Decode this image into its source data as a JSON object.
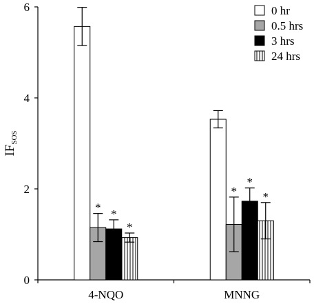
{
  "chart_data": {
    "type": "bar",
    "categories": [
      "4-NQO",
      "MNNG"
    ],
    "series": [
      {
        "name": "0 hr",
        "values": [
          5.57,
          3.53
        ],
        "errors": [
          0.42,
          0.19
        ],
        "significant": [
          false,
          false
        ],
        "fill": "white"
      },
      {
        "name": "0.5 hrs",
        "values": [
          1.15,
          1.22
        ],
        "errors": [
          0.31,
          0.6
        ],
        "significant": [
          true,
          true
        ],
        "fill": "gray"
      },
      {
        "name": "3 hrs",
        "values": [
          1.12,
          1.73
        ],
        "errors": [
          0.2,
          0.29
        ],
        "significant": [
          true,
          true
        ],
        "fill": "black"
      },
      {
        "name": "24 hrs",
        "values": [
          0.93,
          1.3
        ],
        "errors": [
          0.1,
          0.4
        ],
        "significant": [
          true,
          true
        ],
        "fill": "vertical-hatch"
      }
    ],
    "ylabel": "IF",
    "ylabel_subscript": "SOS",
    "xlabel": "",
    "title": "",
    "ylim": [
      0,
      6
    ],
    "yticks": [
      0,
      2,
      4,
      6
    ],
    "significance_marker": "*",
    "legend_position": "top-right",
    "grid": false
  },
  "colors": {
    "gray": "#a6a6a6",
    "black": "#000000",
    "white": "#ffffff",
    "axis": "#000000"
  }
}
